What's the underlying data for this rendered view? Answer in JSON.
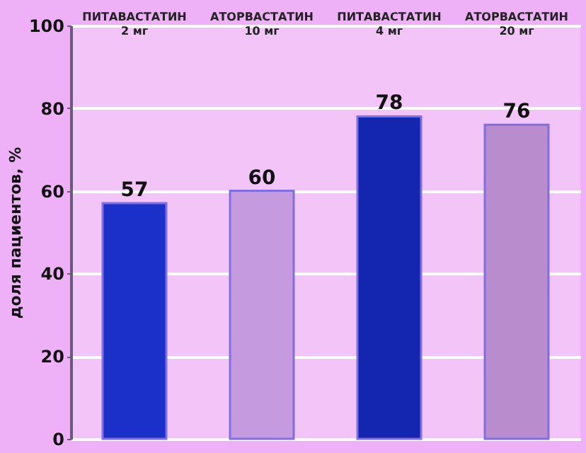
{
  "chart_data": {
    "type": "bar",
    "categories": [
      "ПИТАВАСТАТИН\n2 мг",
      "АТОРВАСТАТИН\n10 мг",
      "ПИТАВАСТАТИН\n4 мг",
      "АТОРВАСТАТИН\n20 мг"
    ],
    "values": [
      57,
      60,
      78,
      76
    ],
    "colors": [
      "#1b30c8",
      "#c59ade",
      "#1426b0",
      "#b98cce"
    ],
    "ylabel": "доля пациентов, %",
    "ylim": [
      0,
      100
    ],
    "yticks": [
      0,
      20,
      40,
      60,
      80,
      100
    ],
    "grid": "y",
    "data_labels": true
  }
}
